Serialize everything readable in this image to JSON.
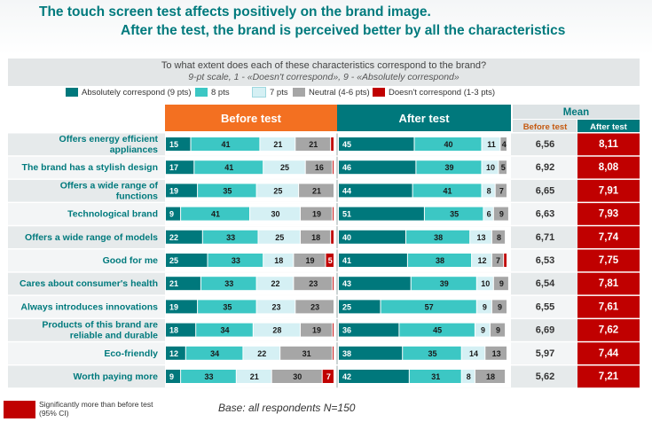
{
  "header": {
    "title_line1": "The touch screen test affects positively on the brand image.",
    "title_line2": "After the test, the brand is perceived better by all the characteristics"
  },
  "question": {
    "line1": "To what extent does each of these characteristics correspond to the brand?",
    "line2": "9-pt scale, 1 - «Doesn't correspond», 9 - «Absolutely correspond»"
  },
  "legend": [
    {
      "label": "Absolutely correspond (9 pts)",
      "color": "#00787c"
    },
    {
      "label": "8 pts",
      "color": "#3cc7c4"
    },
    {
      "label": "7 pts",
      "color": "#d5f0f4"
    },
    {
      "label": "Neutral (4-6 pts)",
      "color": "#a6a6a6"
    },
    {
      "label": "Doesn't correspond (1-3 pts)",
      "color": "#c00000"
    }
  ],
  "footer": {
    "significance_note": "Significantly more than before test (95% CI)",
    "base": "Base:  all respondents N=150"
  },
  "chart_data": {
    "type": "bar",
    "stacked": true,
    "headers": {
      "before": "Before test",
      "after": "After test",
      "mean": "Mean",
      "mean_before": "Before test",
      "mean_after": "After test"
    },
    "categories": [
      "Offers energy efficient appliances",
      "The brand has a stylish design",
      "Offers a wide range of functions",
      "Technological  brand",
      "Offers a wide range of models",
      "Good for me",
      "Cares about consumer's health",
      "Always introduces innovations",
      "Products of this brand are reliable and durable",
      "Eco-friendly",
      "Worth paying more"
    ],
    "segment_names": [
      "9 pts",
      "8 pts",
      "7 pts",
      "4-6 pts",
      "1-3 pts"
    ],
    "segment_colors": [
      "#00787c",
      "#3cc7c4",
      "#d5f0f4",
      "#a6a6a6",
      "#c00000"
    ],
    "before": [
      [
        15,
        41,
        21,
        21,
        2
      ],
      [
        17,
        41,
        25,
        16,
        1
      ],
      [
        19,
        35,
        25,
        21,
        0
      ],
      [
        9,
        41,
        30,
        19,
        1
      ],
      [
        22,
        33,
        25,
        18,
        2
      ],
      [
        25,
        33,
        18,
        19,
        5
      ],
      [
        21,
        33,
        22,
        23,
        1
      ],
      [
        19,
        35,
        23,
        23,
        0
      ],
      [
        18,
        34,
        28,
        19,
        1
      ],
      [
        12,
        34,
        22,
        31,
        1
      ],
      [
        9,
        33,
        21,
        30,
        7
      ]
    ],
    "after": [
      [
        45,
        40,
        11,
        4,
        0
      ],
      [
        46,
        39,
        10,
        5,
        0
      ],
      [
        44,
        41,
        8,
        7,
        0
      ],
      [
        51,
        35,
        6,
        9,
        0
      ],
      [
        40,
        38,
        13,
        8,
        0
      ],
      [
        41,
        38,
        12,
        7,
        2
      ],
      [
        43,
        39,
        10,
        9,
        0
      ],
      [
        25,
        57,
        9,
        9,
        0
      ],
      [
        36,
        45,
        9,
        9,
        0
      ],
      [
        38,
        35,
        14,
        13,
        0
      ],
      [
        42,
        31,
        8,
        18,
        0
      ]
    ],
    "mean_before": [
      "6,56",
      "6,92",
      "6,65",
      "6,63",
      "6,71",
      "6,53",
      "6,54",
      "6,55",
      "6,69",
      "5,97",
      "5,62"
    ],
    "mean_after": [
      "8,11",
      "8,08",
      "7,91",
      "7,93",
      "7,74",
      "7,75",
      "7,81",
      "7,61",
      "7,62",
      "7,44",
      "7,21"
    ],
    "mean_after_significant": [
      true,
      true,
      true,
      true,
      true,
      true,
      true,
      true,
      true,
      true,
      true
    ]
  }
}
